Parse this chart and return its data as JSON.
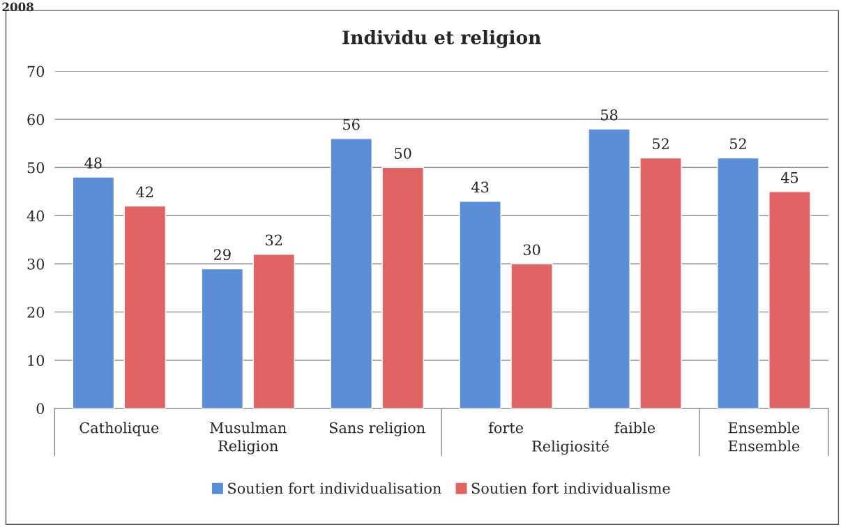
{
  "chart_data": {
    "type": "bar",
    "title": "Individu et religion",
    "categories": [
      "Catholique",
      "Musulman",
      "Sans religion",
      "forte",
      "faible",
      "Ensemble"
    ],
    "series": [
      {
        "name": "Soutien fort individualisation",
        "color": "#5b8ed6",
        "values": [
          48,
          29,
          56,
          43,
          58,
          52
        ]
      },
      {
        "name": "Soutien fort individualisme",
        "color": "#e06464",
        "values": [
          42,
          32,
          50,
          30,
          52,
          45
        ]
      }
    ],
    "ylim": [
      0,
      70
    ],
    "yticks": [
      0,
      10,
      20,
      30,
      40,
      50,
      60,
      70
    ],
    "grid": "y",
    "legend": "bottom",
    "data_labels": true,
    "annotations": [
      "2008",
      "Religion",
      "Religiosité",
      "Ensemble"
    ]
  }
}
